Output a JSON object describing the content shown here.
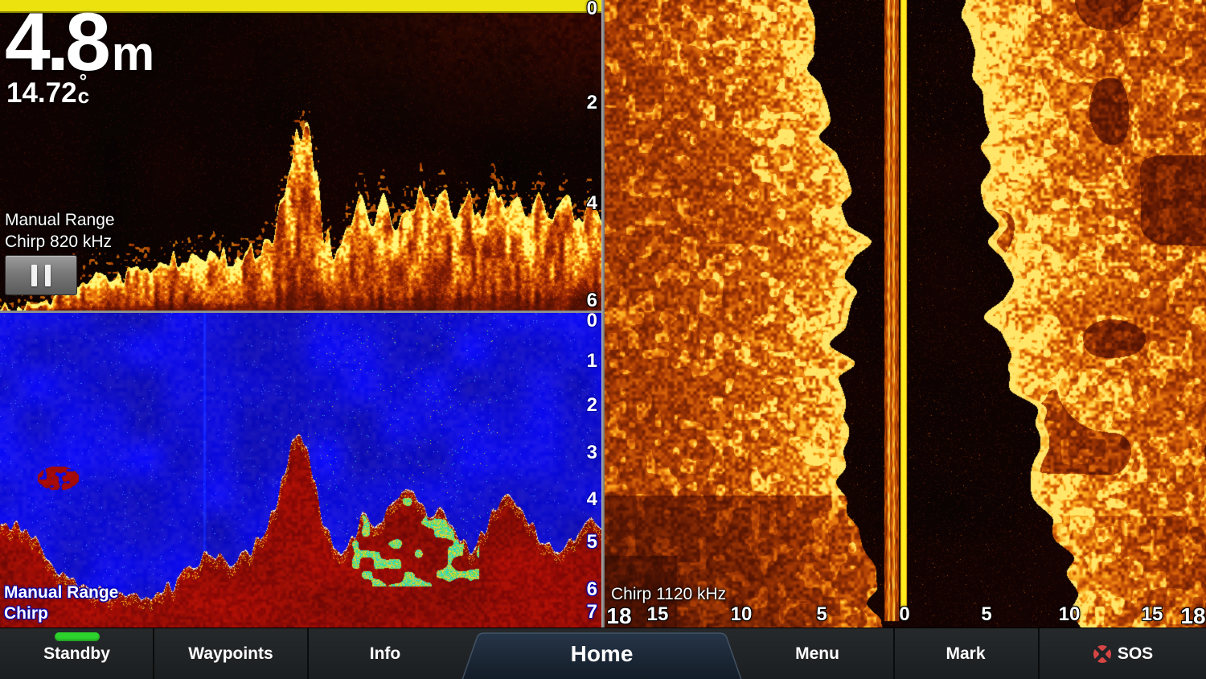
{
  "sonar_classic": {
    "depth": "4.8",
    "depth_unit": "m",
    "temperature": "14.72",
    "temperature_degree": "°",
    "temperature_unit": "c",
    "range_mode": "Manual Range",
    "frequency": "Chirp 820 kHz",
    "depth_scale": [
      "0",
      "2",
      "4",
      "6"
    ]
  },
  "sonar_blue": {
    "range_mode": "Manual Range",
    "frequency": "Chirp",
    "depth_scale": [
      "0",
      "1",
      "2",
      "3",
      "4",
      "5",
      "6",
      "7"
    ]
  },
  "sidevu": {
    "frequency": "Chirp 1120 kHz",
    "range_scale": [
      "18",
      "15",
      "10",
      "5",
      "0",
      "5",
      "10",
      "15",
      "18"
    ]
  },
  "menu_bar": {
    "standby": "Standby",
    "waypoints": "Waypoints",
    "info": "Info",
    "home": "Home",
    "menu": "Menu",
    "mark": "Mark",
    "sos": "SOS"
  },
  "icons": {
    "pause": "pause-icon",
    "sos": "sos-lifering-icon"
  },
  "colors": {
    "surface_line_yellow": "#ece20e",
    "sonar_blue_background": "#0007d6",
    "sonar_bottom_red": "#8e0603",
    "sidevu_beam_yellow": "#ffec00",
    "standby_indicator_green": "#2dd32d",
    "sos_icon_red": "#d64545",
    "home_tab_blue": "#1d2a39"
  }
}
